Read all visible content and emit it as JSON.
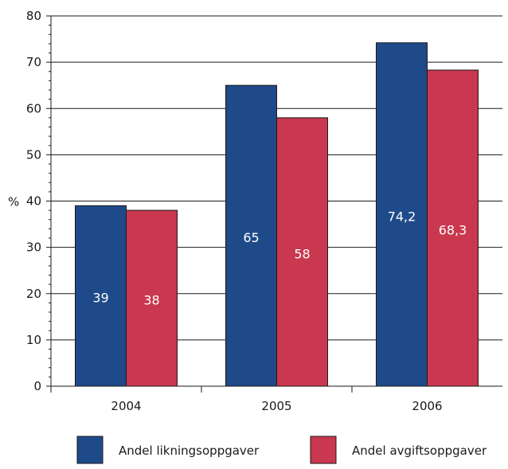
{
  "chart_data": {
    "type": "bar",
    "categories": [
      "2004",
      "2005",
      "2006"
    ],
    "series": [
      {
        "name": "Andel likningsoppgaver",
        "values": [
          39,
          65,
          74.2
        ],
        "labels": [
          "39",
          "65",
          "74,2"
        ],
        "color": "#1f4a8a"
      },
      {
        "name": "Andel avgiftsoppgaver",
        "values": [
          38,
          58,
          68.3
        ],
        "labels": [
          "38",
          "58",
          "68,3"
        ],
        "color": "#c9384e"
      }
    ],
    "xlabel": "",
    "ylabel": "%",
    "ylim": [
      0,
      80
    ],
    "yticks": [
      0,
      10,
      20,
      30,
      40,
      50,
      60,
      70,
      80
    ],
    "grid": true,
    "legend_position": "bottom"
  }
}
